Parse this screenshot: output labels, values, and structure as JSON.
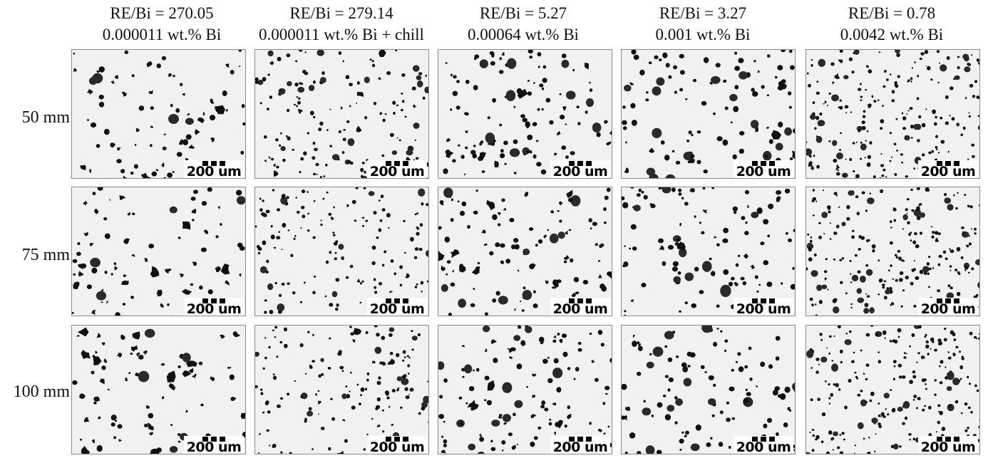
{
  "columns": [
    {
      "title": "RE/Bi = 270.05",
      "subtitle": "0.000011 wt.% Bi"
    },
    {
      "title": "RE/Bi = 279.14",
      "subtitle": "0.000011 wt.% Bi + chill"
    },
    {
      "title": "RE/Bi = 5.27",
      "subtitle": "0.00064 wt.% Bi"
    },
    {
      "title": "RE/Bi = 3.27",
      "subtitle": "0.001 wt.% Bi"
    },
    {
      "title": "RE/Bi = 0.78",
      "subtitle": "0.0042 wt.% Bi"
    }
  ],
  "rows": [
    {
      "label": "50 mm"
    },
    {
      "label": "75 mm"
    },
    {
      "label": "100 mm"
    }
  ],
  "scale_bar_label": "200 um",
  "image_description": "micrograph-grid-graphite-nodules",
  "colors": {
    "background": "#ffffff",
    "particle": "#111111",
    "matrix": "#f1f1f1"
  }
}
